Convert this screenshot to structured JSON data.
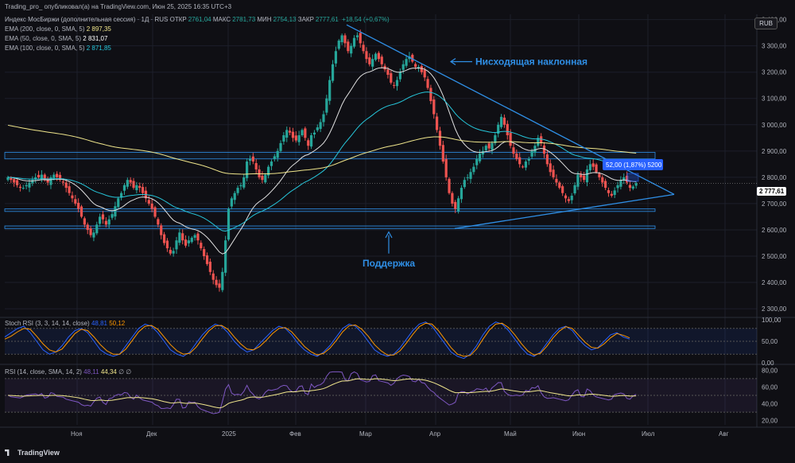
{
  "header": {
    "title": "Trading_pro_ опубликовал(а) на TradingView.com, Июн 25, 2025 16:35 UTC+3",
    "symbol": "Индекс МосБиржи (дополнительная сессия) · 1Д · RUS",
    "open_label": "ОТКР",
    "open": "2761,04",
    "high_label": "МАКС",
    "high": "2781,73",
    "low_label": "МИН",
    "low": "2754,13",
    "close_label": "ЗАКР",
    "close": "2777,61",
    "change": "+18,54 (+0,67%)"
  },
  "indicators": {
    "ema200": {
      "label": "EMA (200, close, 0, SMA, 5)",
      "value": "2 897,35",
      "color": "#f0e68c"
    },
    "ema50": {
      "label": "EMA (50, close, 0, SMA, 5)",
      "value": "2 831,07",
      "color": "#ffffff"
    },
    "ema100": {
      "label": "EMA (100, close, 0, SMA, 5)",
      "value": "2 871,85",
      "color": "#26c6da"
    },
    "stoch": {
      "label": "Stoch RSI (3, 3, 14, 14, close)",
      "value1": "48,81",
      "value2": "50,12"
    },
    "rsi": {
      "label": "RSI (14, close, SMA, 14, 2)",
      "value1": "48,11",
      "value2": "44,34",
      "extra": "∅ ∅"
    }
  },
  "currency": "RUB",
  "current_price": "2 777,61",
  "annotations": {
    "resistance": "Нисходящая наклонная",
    "support": "Поддержка",
    "measure": "52,00 (1,87%) 5200"
  },
  "colors": {
    "up": "#26a69a",
    "down": "#ef5350",
    "bg": "#0f0f14",
    "trend": "#2f8fe6",
    "stoch_k": "#2962ff",
    "stoch_d": "#ff9800",
    "rsi": "#7e57c2",
    "rsi_ma": "#f0e68c"
  },
  "branding": "TradingView",
  "chart_data": {
    "type": "candlestick",
    "x_ticks": [
      "Ноя",
      "Дек",
      "2025",
      "Фев",
      "Мар",
      "Апр",
      "Май",
      "Июн",
      "Июл",
      "Авг"
    ],
    "price_axis": [
      "3 400,00",
      "3 300,00",
      "3 200,00",
      "3 100,00",
      "3 000,00",
      "2 900,00",
      "2 800,00",
      "2 700,00",
      "2 600,00",
      "2 500,00",
      "2 400,00",
      "2 300,00"
    ],
    "price_range": [
      2270,
      3420
    ],
    "stoch_axis": [
      "100,00",
      "50,00",
      "0,00"
    ],
    "rsi_axis": [
      "80,00",
      "60,00",
      "40,00",
      "20,00"
    ],
    "close_path": [
      2800,
      2790,
      2780,
      2770,
      2760,
      2760,
      2770,
      2780,
      2790,
      2800,
      2800,
      2810,
      2790,
      2780,
      2800,
      2810,
      2800,
      2790,
      2780,
      2760,
      2740,
      2720,
      2700,
      2680,
      2650,
      2620,
      2600,
      2580,
      2590,
      2620,
      2650,
      2640,
      2620,
      2640,
      2660,
      2690,
      2720,
      2740,
      2770,
      2790,
      2780,
      2760,
      2770,
      2760,
      2740,
      2720,
      2700,
      2680,
      2650,
      2620,
      2580,
      2550,
      2530,
      2510,
      2520,
      2560,
      2590,
      2560,
      2540,
      2560,
      2570,
      2580,
      2560,
      2530,
      2500,
      2470,
      2440,
      2410,
      2390,
      2380,
      2440,
      2560,
      2680,
      2720,
      2740,
      2760,
      2770,
      2800,
      2860,
      2870,
      2860,
      2830,
      2800,
      2790,
      2810,
      2840,
      2860,
      2880,
      2900,
      2930,
      2960,
      2980,
      2970,
      2950,
      2940,
      2960,
      2980,
      2950,
      2920,
      2960,
      2970,
      2990,
      3010,
      3040,
      3100,
      3170,
      3230,
      3280,
      3320,
      3340,
      3310,
      3280,
      3300,
      3330,
      3340,
      3310,
      3280,
      3250,
      3230,
      3250,
      3270,
      3250,
      3230,
      3210,
      3190,
      3160,
      3150,
      3170,
      3200,
      3230,
      3250,
      3260,
      3240,
      3220,
      3220,
      3200,
      3180,
      3140,
      3090,
      3040,
      2980,
      2920,
      2860,
      2800,
      2740,
      2700,
      2680,
      2720,
      2760,
      2790,
      2800,
      2820,
      2840,
      2870,
      2890,
      2900,
      2920,
      2910,
      2930,
      2960,
      3000,
      3030,
      3000,
      2960,
      2920,
      2890,
      2870,
      2850,
      2840,
      2860,
      2870,
      2900,
      2920,
      2950,
      2930,
      2890,
      2850,
      2820,
      2800,
      2780,
      2760,
      2740,
      2720,
      2710,
      2730,
      2770,
      2810,
      2800,
      2790,
      2830,
      2850,
      2840,
      2820,
      2800,
      2780,
      2760,
      2740,
      2730,
      2750,
      2770,
      2790,
      2800,
      2780,
      2760,
      2765,
      2778
    ],
    "ema_slow_start": 3000,
    "stoch_k": [
      60,
      70,
      80,
      85,
      70,
      50,
      30,
      20,
      25,
      40,
      60,
      75,
      80,
      70,
      50,
      30,
      20,
      15,
      20,
      40,
      60,
      80,
      90,
      85,
      70,
      50,
      30,
      20,
      15,
      25,
      45,
      65,
      80,
      90,
      85,
      70,
      50,
      35,
      25,
      30,
      45,
      60,
      75,
      85,
      80,
      65,
      45,
      30,
      20,
      15,
      25,
      40,
      60,
      80,
      90,
      85,
      70,
      50,
      30,
      20,
      15,
      20,
      35,
      55,
      75,
      90,
      95,
      85,
      65,
      45,
      25,
      15,
      10,
      20,
      40,
      65,
      85,
      95,
      90,
      75,
      55,
      35,
      20,
      15,
      25,
      45,
      65,
      80,
      85,
      75,
      55,
      40,
      30,
      35,
      50,
      65,
      70,
      60,
      55
    ],
    "stoch_d": [
      55,
      62,
      72,
      80,
      78,
      62,
      44,
      30,
      25,
      32,
      50,
      68,
      78,
      75,
      60,
      42,
      28,
      20,
      20,
      32,
      52,
      72,
      85,
      87,
      78,
      60,
      42,
      28,
      20,
      22,
      36,
      56,
      74,
      86,
      87,
      78,
      60,
      44,
      32,
      30,
      38,
      52,
      68,
      80,
      82,
      72,
      55,
      38,
      26,
      18,
      22,
      34,
      52,
      72,
      86,
      88,
      78,
      62,
      42,
      28,
      18,
      18,
      28,
      46,
      66,
      84,
      92,
      90,
      75,
      55,
      35,
      20,
      15,
      17,
      32,
      55,
      76,
      90,
      92,
      82,
      65,
      45,
      28,
      18,
      22,
      38,
      58,
      74,
      84,
      80,
      64,
      48,
      36,
      34,
      44,
      58,
      68,
      64,
      58
    ]
  }
}
